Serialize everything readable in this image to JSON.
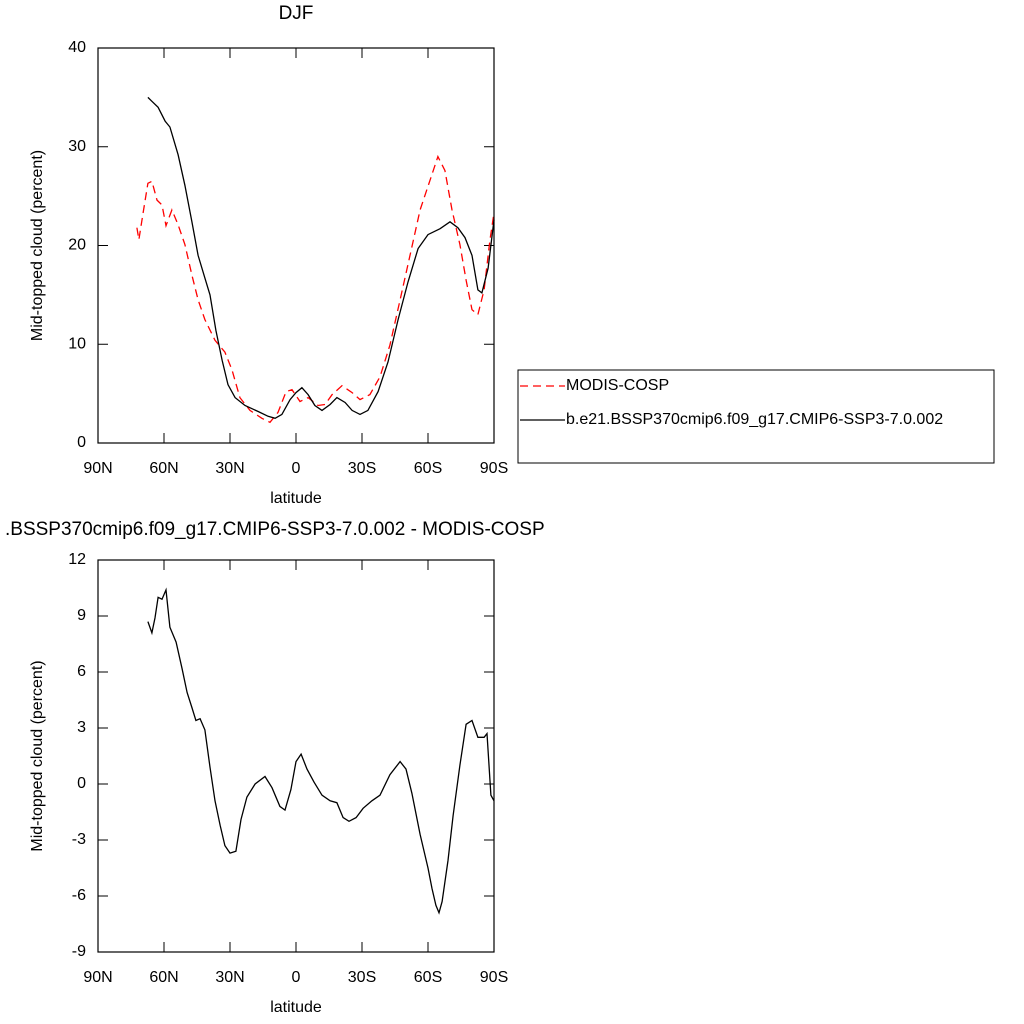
{
  "chart_data": [
    {
      "type": "line",
      "title": "DJF",
      "xlabel": "latitude",
      "ylabel": "Mid-topped cloud (percent)",
      "xlim": [
        90,
        -90
      ],
      "xticks": [
        {
          "value": 90,
          "label": "90N"
        },
        {
          "value": 60,
          "label": "60N"
        },
        {
          "value": 30,
          "label": "30N"
        },
        0,
        {
          "value": -30,
          "label": "30S"
        },
        {
          "value": -60,
          "label": "60S"
        },
        {
          "value": -90,
          "label": "90S"
        }
      ],
      "ylim": [
        0,
        40
      ],
      "yticks": [
        0,
        10,
        20,
        30,
        40
      ],
      "legend": "right",
      "series": [
        {
          "name": "MODIS-COSP",
          "color": "#ff0000",
          "linestyle": "dashed",
          "x": [
            72.3,
            71.4,
            69.5,
            67.3,
            65.5,
            63.2,
            60.9,
            59.1,
            56.4,
            53.6,
            50.5,
            47.3,
            44.5,
            41.4,
            36.8,
            32.3,
            29.1,
            25.5,
            20.9,
            15.5,
            11.8,
            8.2,
            4.5,
            1.8,
            -1.8,
            -5.5,
            -10,
            -13.2,
            -16.4,
            -20.9,
            -25.5,
            -29.1,
            -33.6,
            -38.2,
            -42.7,
            -47.3,
            -51.8,
            -56.4,
            -60.9,
            -64.5,
            -67.7,
            -70.9,
            -74.5,
            -77.3,
            -80,
            -82.7,
            -85.5,
            -88.2,
            -90
          ],
          "values": [
            21.8,
            20.6,
            23.3,
            26.3,
            26.5,
            24.6,
            24.1,
            22.0,
            23.6,
            22.1,
            20.1,
            17.0,
            14.5,
            12.5,
            10.4,
            9.2,
            7.4,
            4.6,
            3.3,
            2.5,
            2.1,
            3.1,
            5.2,
            5.4,
            4.2,
            4.6,
            3.8,
            3.9,
            4.9,
            5.8,
            5.1,
            4.4,
            4.9,
            6.7,
            9.9,
            14.5,
            19.0,
            23.6,
            26.6,
            29.0,
            27.6,
            23.6,
            20.1,
            16.5,
            13.5,
            13.0,
            15.5,
            20.6,
            23.3
          ]
        },
        {
          "name": "b.e21.BSSP370cmip6.f09_g17.CMIP6-SSP3-7.0.002",
          "color": "#000000",
          "linestyle": "solid",
          "x": [
            67.3,
            65.5,
            62.7,
            59.5,
            57.3,
            53.6,
            50.5,
            47.3,
            44.5,
            41.4,
            39.1,
            36.4,
            33.6,
            30.9,
            27.7,
            23.2,
            17.3,
            12.7,
            9.5,
            6.4,
            2.7,
            0,
            -2.7,
            -5.5,
            -8.6,
            -11.8,
            -15.5,
            -18.6,
            -22.3,
            -25.5,
            -29.1,
            -32.7,
            -37.3,
            -41.8,
            -46.4,
            -50.9,
            -55.5,
            -60,
            -65.5,
            -70,
            -73.6,
            -76.8,
            -80,
            -82.7,
            -84.5,
            -87.3,
            -90
          ],
          "values": [
            35.0,
            34.6,
            34.0,
            32.6,
            32.0,
            29.2,
            26.1,
            22.4,
            19.0,
            16.7,
            15.0,
            11.4,
            8.4,
            5.9,
            4.6,
            3.8,
            3.2,
            2.7,
            2.5,
            2.9,
            4.4,
            5.1,
            5.6,
            4.9,
            3.8,
            3.3,
            3.9,
            4.6,
            4.1,
            3.3,
            2.9,
            3.3,
            5.2,
            8.2,
            12.5,
            16.3,
            19.7,
            21.1,
            21.7,
            22.4,
            21.8,
            20.8,
            19.0,
            15.5,
            15.2,
            17.7,
            22.6
          ]
        }
      ]
    },
    {
      "type": "line",
      "title": ".BSSP370cmip6.f09_g17.CMIP6-SSP3-7.0.002 - MODIS-COSP",
      "xlabel": "latitude",
      "ylabel": "Mid-topped cloud (percent)",
      "xlim": [
        90,
        -90
      ],
      "xticks": [
        {
          "value": 90,
          "label": "90N"
        },
        {
          "value": 60,
          "label": "60N"
        },
        {
          "value": 30,
          "label": "30N"
        },
        0,
        {
          "value": -30,
          "label": "30S"
        },
        {
          "value": -60,
          "label": "60S"
        },
        {
          "value": -90,
          "label": "90S"
        }
      ],
      "ylim": [
        -9,
        12
      ],
      "yticks": [
        -9,
        -6,
        -3,
        0,
        3,
        6,
        9,
        12
      ],
      "series": [
        {
          "color": "#000000",
          "linestyle": "solid",
          "x": [
            67.3,
            65.5,
            64.1,
            62.7,
            60.9,
            59.1,
            57.3,
            54.5,
            51.8,
            49.5,
            47.3,
            45.5,
            43.6,
            41.4,
            39.1,
            36.8,
            34.5,
            32.3,
            30,
            27.3,
            25,
            22.3,
            18.6,
            14.1,
            10.9,
            7.3,
            5,
            2.3,
            0,
            -2.3,
            -5,
            -8.2,
            -11.8,
            -15.5,
            -18.6,
            -21.4,
            -24.1,
            -27.3,
            -30.5,
            -34.5,
            -38.2,
            -42.7,
            -47.3,
            -50,
            -52.7,
            -56.4,
            -60,
            -61.8,
            -63.6,
            -65,
            -66.4,
            -69.1,
            -71.4,
            -74.5,
            -77.3,
            -80,
            -82.7,
            -85.5,
            -86.8,
            -88.6,
            -90
          ],
          "values": [
            8.7,
            8.1,
            8.9,
            10.0,
            9.9,
            10.4,
            8.4,
            7.6,
            6.2,
            4.9,
            4.1,
            3.4,
            3.5,
            2.9,
            0.9,
            -0.9,
            -2.2,
            -3.3,
            -3.7,
            -3.6,
            -1.9,
            -0.7,
            0.0,
            0.4,
            -0.2,
            -1.2,
            -1.4,
            -0.3,
            1.2,
            1.6,
            0.8,
            0.1,
            -0.6,
            -0.9,
            -1.0,
            -1.8,
            -2.0,
            -1.8,
            -1.3,
            -0.9,
            -0.6,
            0.5,
            1.2,
            0.8,
            -0.5,
            -2.7,
            -4.5,
            -5.6,
            -6.5,
            -6.9,
            -6.3,
            -4.1,
            -1.7,
            1.0,
            3.2,
            3.4,
            2.5,
            2.5,
            2.7,
            -0.6,
            -0.9
          ]
        }
      ]
    }
  ]
}
